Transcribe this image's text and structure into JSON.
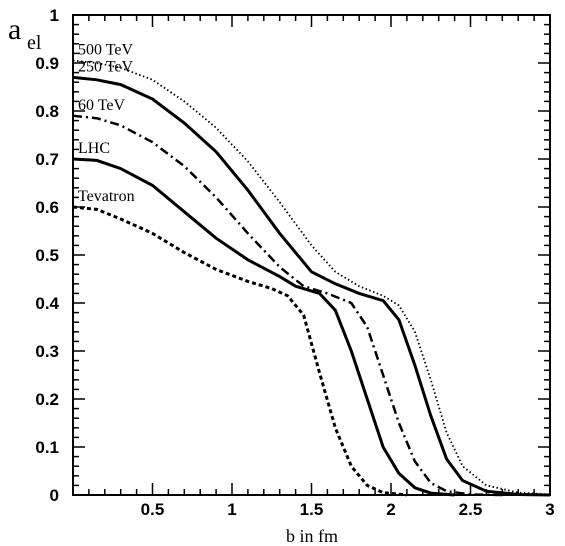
{
  "chart_data": {
    "type": "line",
    "title": "",
    "xlabel": "b in fm",
    "ylabel_main": "a",
    "ylabel_sub": "el",
    "xlim": [
      0,
      3
    ],
    "ylim": [
      0,
      1
    ],
    "grid": false,
    "x_ticks": [
      {
        "value": 0.5,
        "label": "0.5"
      },
      {
        "value": 1,
        "label": "1"
      },
      {
        "value": 1.5,
        "label": "1.5"
      },
      {
        "value": 2,
        "label": "2"
      },
      {
        "value": 2.5,
        "label": "2.5"
      },
      {
        "value": 3,
        "label": "3"
      }
    ],
    "y_ticks": [
      {
        "value": 0,
        "label": "0"
      },
      {
        "value": 0.1,
        "label": "0.1"
      },
      {
        "value": 0.2,
        "label": "0.2"
      },
      {
        "value": 0.3,
        "label": "0.3"
      },
      {
        "value": 0.4,
        "label": "0.4"
      },
      {
        "value": 0.5,
        "label": "0.5"
      },
      {
        "value": 0.6,
        "label": "0.6"
      },
      {
        "value": 0.7,
        "label": "0.7"
      },
      {
        "value": 0.8,
        "label": "0.8"
      },
      {
        "value": 0.9,
        "label": "0.9"
      },
      {
        "value": 1,
        "label": "1"
      }
    ],
    "series": [
      {
        "name": "500 TeV",
        "style": "dotted",
        "points": [
          [
            0,
            0.905
          ],
          [
            0.15,
            0.9
          ],
          [
            0.3,
            0.89
          ],
          [
            0.5,
            0.865
          ],
          [
            0.7,
            0.82
          ],
          [
            0.9,
            0.765
          ],
          [
            1.1,
            0.695
          ],
          [
            1.3,
            0.61
          ],
          [
            1.5,
            0.52
          ],
          [
            1.65,
            0.465
          ],
          [
            1.8,
            0.435
          ],
          [
            1.95,
            0.415
          ],
          [
            2.05,
            0.395
          ],
          [
            2.15,
            0.34
          ],
          [
            2.25,
            0.24
          ],
          [
            2.35,
            0.13
          ],
          [
            2.45,
            0.06
          ],
          [
            2.6,
            0.02
          ],
          [
            2.8,
            0.005
          ],
          [
            3.0,
            0.001
          ]
        ]
      },
      {
        "name": "250 TeV",
        "style": "solid",
        "points": [
          [
            0,
            0.87
          ],
          [
            0.15,
            0.865
          ],
          [
            0.3,
            0.855
          ],
          [
            0.5,
            0.825
          ],
          [
            0.7,
            0.775
          ],
          [
            0.9,
            0.715
          ],
          [
            1.1,
            0.635
          ],
          [
            1.3,
            0.545
          ],
          [
            1.5,
            0.465
          ],
          [
            1.65,
            0.44
          ],
          [
            1.8,
            0.42
          ],
          [
            1.95,
            0.405
          ],
          [
            2.05,
            0.365
          ],
          [
            2.15,
            0.27
          ],
          [
            2.25,
            0.165
          ],
          [
            2.35,
            0.075
          ],
          [
            2.45,
            0.03
          ],
          [
            2.6,
            0.008
          ],
          [
            2.8,
            0.001
          ],
          [
            3.0,
            0.0
          ]
        ]
      },
      {
        "name": "60 TeV",
        "style": "dash-dot",
        "points": [
          [
            0,
            0.79
          ],
          [
            0.15,
            0.785
          ],
          [
            0.3,
            0.77
          ],
          [
            0.5,
            0.735
          ],
          [
            0.7,
            0.685
          ],
          [
            0.9,
            0.62
          ],
          [
            1.1,
            0.545
          ],
          [
            1.3,
            0.475
          ],
          [
            1.45,
            0.435
          ],
          [
            1.6,
            0.42
          ],
          [
            1.75,
            0.4
          ],
          [
            1.85,
            0.35
          ],
          [
            1.95,
            0.25
          ],
          [
            2.05,
            0.15
          ],
          [
            2.15,
            0.07
          ],
          [
            2.25,
            0.025
          ],
          [
            2.35,
            0.008
          ],
          [
            2.5,
            0.001
          ],
          [
            2.7,
            0.0
          ]
        ]
      },
      {
        "name": "LHC",
        "style": "solid",
        "points": [
          [
            0,
            0.7
          ],
          [
            0.15,
            0.697
          ],
          [
            0.3,
            0.68
          ],
          [
            0.5,
            0.645
          ],
          [
            0.7,
            0.59
          ],
          [
            0.9,
            0.535
          ],
          [
            1.1,
            0.49
          ],
          [
            1.3,
            0.455
          ],
          [
            1.4,
            0.435
          ],
          [
            1.55,
            0.42
          ],
          [
            1.65,
            0.385
          ],
          [
            1.75,
            0.3
          ],
          [
            1.85,
            0.2
          ],
          [
            1.95,
            0.1
          ],
          [
            2.05,
            0.045
          ],
          [
            2.15,
            0.015
          ],
          [
            2.25,
            0.004
          ],
          [
            2.4,
            0.0
          ]
        ]
      },
      {
        "name": "Tevatron",
        "style": "dashed",
        "points": [
          [
            0,
            0.6
          ],
          [
            0.15,
            0.595
          ],
          [
            0.3,
            0.575
          ],
          [
            0.5,
            0.545
          ],
          [
            0.7,
            0.505
          ],
          [
            0.9,
            0.47
          ],
          [
            1.1,
            0.445
          ],
          [
            1.25,
            0.43
          ],
          [
            1.35,
            0.415
          ],
          [
            1.45,
            0.375
          ],
          [
            1.55,
            0.255
          ],
          [
            1.65,
            0.14
          ],
          [
            1.75,
            0.06
          ],
          [
            1.85,
            0.02
          ],
          [
            1.95,
            0.005
          ],
          [
            2.1,
            0.0
          ]
        ]
      }
    ]
  }
}
